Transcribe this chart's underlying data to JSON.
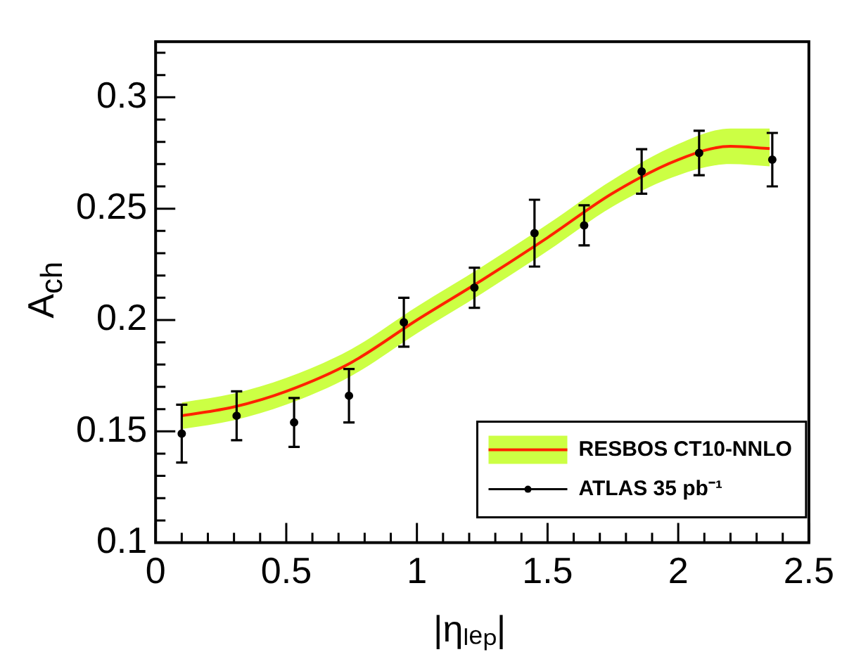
{
  "chart_data": {
    "type": "scatter",
    "xlabel": "|ηₗₑₚ|",
    "ylabel": "A$_{ch}$",
    "legend": "bottom right",
    "xlim": [
      0,
      2.5
    ],
    "ylim": [
      0.1,
      0.325
    ],
    "xticks": [
      0,
      {
        "value": 0.1,
        "label": null
      },
      {
        "value": 0.2,
        "label": null
      },
      {
        "value": 0.3,
        "label": null
      },
      {
        "value": 0.4,
        "label": null
      },
      0.5,
      {
        "value": 0.6,
        "label": null
      },
      {
        "value": 0.7,
        "label": null
      },
      {
        "value": 0.8,
        "label": null
      },
      {
        "value": 0.9,
        "label": null
      },
      1,
      {
        "value": 1.1,
        "label": null
      },
      {
        "value": 1.2,
        "label": null
      },
      {
        "value": 1.3,
        "label": null
      },
      {
        "value": 1.4,
        "label": null
      },
      1.5,
      {
        "value": 1.6,
        "label": null
      },
      {
        "value": 1.7,
        "label": null
      },
      {
        "value": 1.8,
        "label": null
      },
      {
        "value": 1.9,
        "label": null
      },
      2,
      {
        "value": 2.1,
        "label": null
      },
      {
        "value": 2.2,
        "label": null
      },
      {
        "value": 2.3,
        "label": null
      },
      {
        "value": 2.4,
        "label": null
      },
      2.5
    ],
    "yticks": [
      0.1,
      {
        "value": 0.11,
        "label": null
      },
      {
        "value": 0.12,
        "label": null
      },
      {
        "value": 0.13,
        "label": null
      },
      {
        "value": 0.14,
        "label": null
      },
      0.15,
      {
        "value": 0.16,
        "label": null
      },
      {
        "value": 0.17,
        "label": null
      },
      {
        "value": 0.18,
        "label": null
      },
      {
        "value": 0.19,
        "label": null
      },
      0.2,
      {
        "value": 0.21,
        "label": null
      },
      {
        "value": 0.22,
        "label": null
      },
      {
        "value": 0.23,
        "label": null
      },
      {
        "value": 0.24,
        "label": null
      },
      0.25,
      {
        "value": 0.26,
        "label": null
      },
      {
        "value": 0.27,
        "label": null
      },
      {
        "value": 0.28,
        "label": null
      },
      {
        "value": 0.29,
        "label": null
      },
      0.3,
      {
        "value": 0.31,
        "label": null
      },
      {
        "value": 0.32,
        "label": null
      }
    ],
    "series": [
      {
        "name": "RESBOS CT10-NNLO",
        "type": "line",
        "color": "#ff2200",
        "marker": "none",
        "x": [
          0.1,
          0.3,
          0.5,
          0.75,
          1.0,
          1.25,
          1.5,
          1.75,
          2.0,
          2.2,
          2.35
        ],
        "values": [
          0.157,
          0.161,
          0.168,
          0.181,
          0.2,
          0.218,
          0.237,
          0.257,
          0.272,
          0.278,
          0.277
        ],
        "lower": [
          0.151,
          0.155,
          0.162,
          0.175,
          0.194,
          0.212,
          0.231,
          0.251,
          0.265,
          0.27,
          0.269
        ],
        "upper": [
          0.163,
          0.167,
          0.174,
          0.187,
          0.206,
          0.224,
          0.243,
          0.263,
          0.279,
          0.286,
          0.286
        ]
      },
      {
        "name": "ATLAS 35 pb⁻¹",
        "type": "scatter",
        "color": "#000000",
        "marker": "circle",
        "x": [
          0.1,
          0.31,
          0.53,
          0.74,
          0.95,
          1.22,
          1.45,
          1.64,
          1.86,
          2.08,
          2.36
        ],
        "values": [
          0.149,
          0.157,
          0.154,
          0.166,
          0.199,
          0.2145,
          0.239,
          0.2425,
          0.2667,
          0.275,
          0.272
        ],
        "errors": [
          0.013,
          0.011,
          0.011,
          0.012,
          0.011,
          0.009,
          0.015,
          0.009,
          0.01,
          0.01,
          0.012
        ]
      }
    ]
  }
}
